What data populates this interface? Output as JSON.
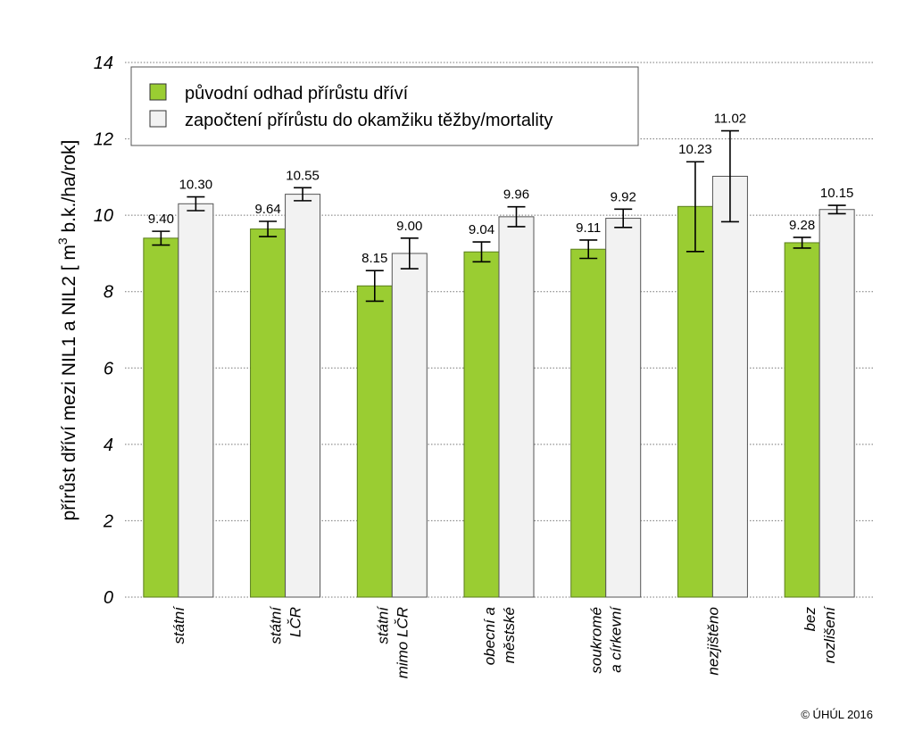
{
  "chart_data": {
    "type": "bar",
    "title": "",
    "ylabel_main": "přírůst dříví mezi NIL1 a NIL2 [ m",
    "ylabel_sup": "3",
    "ylabel_end": " b.k./ha/rok]",
    "ylim": [
      0,
      14
    ],
    "yticks": [
      "0",
      "2",
      "4",
      "6",
      "8",
      "10",
      "12",
      "14"
    ],
    "grid": "horizontal dotted",
    "legend_position": "top-left inside",
    "categories": [
      [
        "státní"
      ],
      [
        "státní",
        "LČR"
      ],
      [
        "státní",
        "mimo LČR"
      ],
      [
        "obecní a",
        "městské"
      ],
      [
        "soukromé",
        "a církevní"
      ],
      [
        "nezjištěno"
      ],
      [
        "bez",
        "rozlišení"
      ]
    ],
    "series": [
      {
        "name": "původní odhad přírůstu dříví",
        "color": "#9acd32",
        "values": [
          9.4,
          9.64,
          8.15,
          9.04,
          9.11,
          10.23,
          9.28
        ],
        "labels": [
          "9.40",
          "9.64",
          "8.15",
          "9.04",
          "9.11",
          "10.23",
          "9.28"
        ],
        "err_low": [
          9.22,
          9.44,
          7.75,
          8.78,
          8.87,
          9.05,
          9.14
        ],
        "err_high": [
          9.58,
          9.84,
          8.55,
          9.3,
          9.35,
          11.4,
          9.42
        ]
      },
      {
        "name": "započtení přírůstu do okamžiku těžby/mortality",
        "color": "#f2f2f2",
        "values": [
          10.3,
          10.55,
          9.0,
          9.96,
          9.92,
          11.02,
          10.15
        ],
        "labels": [
          "10.30",
          "10.55",
          "9.00",
          "9.96",
          "9.92",
          "11.02",
          "10.15"
        ],
        "err_low": [
          10.12,
          10.38,
          8.6,
          9.7,
          9.68,
          9.83,
          10.04
        ],
        "err_high": [
          10.48,
          10.72,
          9.4,
          10.22,
          10.16,
          12.21,
          10.26
        ]
      }
    ]
  },
  "copyright": "© ÚHÚL 2016"
}
